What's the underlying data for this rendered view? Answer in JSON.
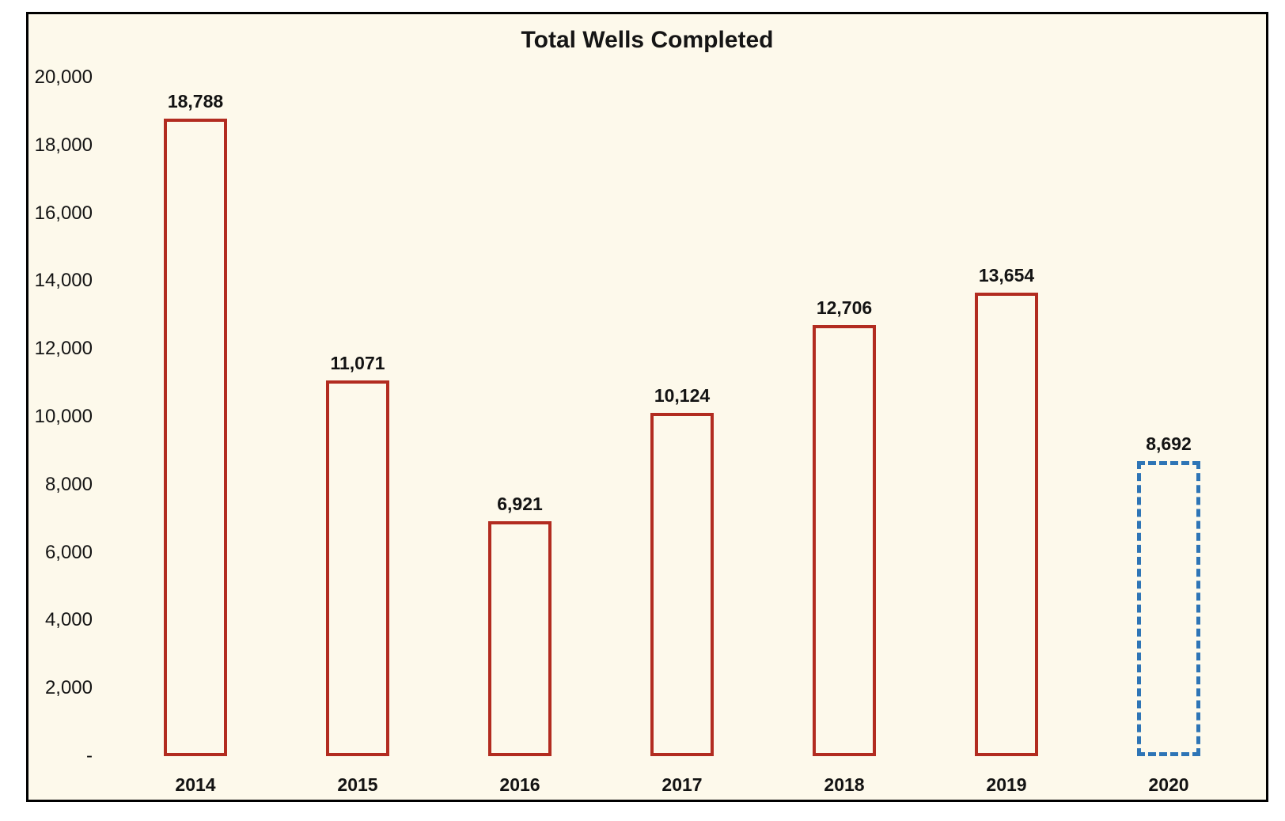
{
  "chart_data": {
    "type": "bar",
    "title": "Total Wells Completed",
    "categories": [
      "2014",
      "2015",
      "2016",
      "2017",
      "2018",
      "2019",
      "2020"
    ],
    "values": [
      18788,
      11071,
      6921,
      10124,
      12706,
      13654,
      8692
    ],
    "value_labels": [
      "18,788",
      "11,071",
      "6,921",
      "10,124",
      "12,706",
      "13,654",
      "8,692"
    ],
    "bar_styles": [
      "solid",
      "solid",
      "solid",
      "solid",
      "solid",
      "solid",
      "dashed"
    ],
    "series": [
      {
        "name": "Total Wells Completed",
        "values": [
          18788,
          11071,
          6921,
          10124,
          12706,
          13654,
          8692
        ]
      }
    ],
    "xlabel": "",
    "ylabel": "",
    "ylim": [
      0,
      20000
    ],
    "ytick_interval": 2000,
    "yticks": [
      {
        "value": 20000,
        "label": "20,000"
      },
      {
        "value": 18000,
        "label": "18,000"
      },
      {
        "value": 16000,
        "label": "16,000"
      },
      {
        "value": 14000,
        "label": "14,000"
      },
      {
        "value": 12000,
        "label": "12,000"
      },
      {
        "value": 10000,
        "label": "10,000"
      },
      {
        "value": 8000,
        "label": "8,000"
      },
      {
        "value": 6000,
        "label": "6,000"
      },
      {
        "value": 4000,
        "label": "4,000"
      },
      {
        "value": 2000,
        "label": "2,000"
      },
      {
        "value": 0,
        "label": "-"
      }
    ],
    "grid": false,
    "legend": null,
    "colors": {
      "bar_outline_solid": "#b22c20",
      "bar_outline_dashed": "#2e75b6",
      "bar_fill": "transparent",
      "plot_background": "#fdf9eb",
      "frame_border": "#000000",
      "text": "#131313"
    }
  }
}
